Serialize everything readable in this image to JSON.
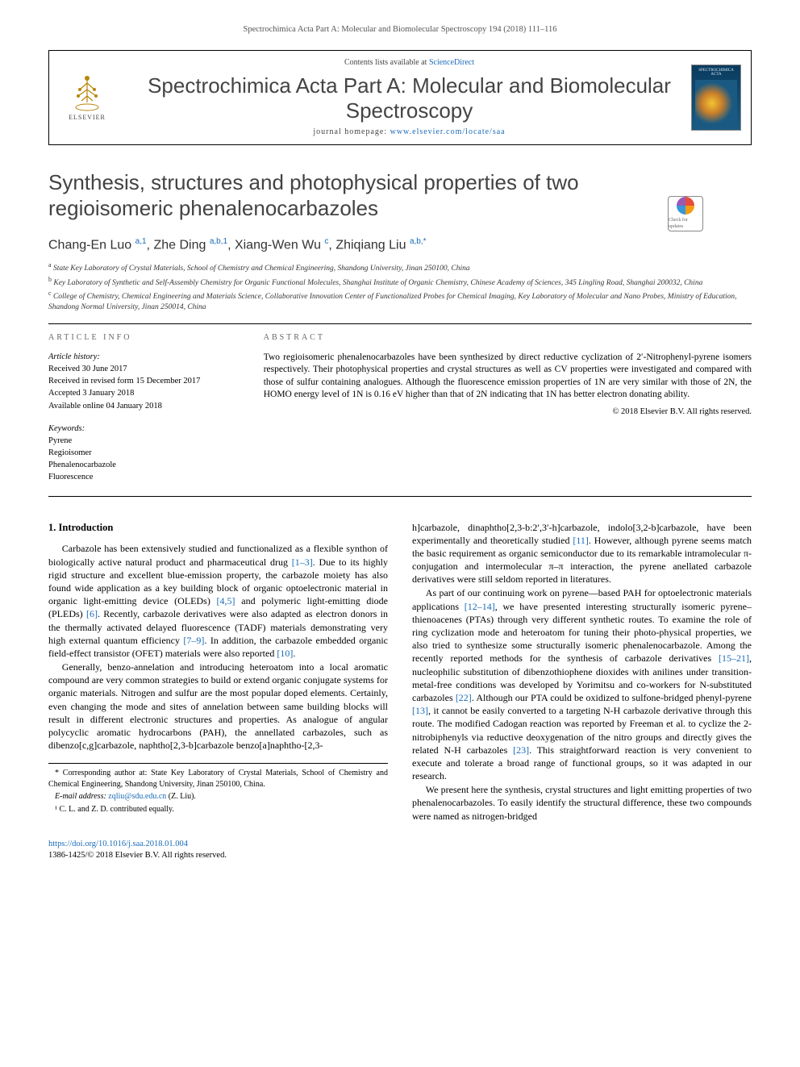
{
  "running_header": "Spectrochimica Acta Part A: Molecular and Biomolecular Spectroscopy 194 (2018) 111–116",
  "banner": {
    "contents_prefix": "Contents lists available at ",
    "contents_link": "ScienceDirect",
    "journal_title": "Spectrochimica Acta Part A: Molecular and Biomolecular Spectroscopy",
    "homepage_prefix": "journal homepage: ",
    "homepage_link": "www.elsevier.com/locate/saa",
    "elsevier_label": "ELSEVIER",
    "cover_label": "SPECTROCHIMICA ACTA"
  },
  "article": {
    "title": "Synthesis, structures and photophysical properties of two regioisomeric phenalenocarbazoles",
    "crossmark_label": "Check for updates",
    "authors_html": "Chang-En Luo <sup><a>a,1</a></sup>, Zhe Ding <sup><a>a,b,1</a></sup>, Xiang-Wen Wu <sup><a>c</a></sup>, Zhiqiang Liu <sup><a>a,b,</a></sup><sup><a>*</a></sup>",
    "affiliations": [
      {
        "sup": "a",
        "text": "State Key Laboratory of Crystal Materials, School of Chemistry and Chemical Engineering, Shandong University, Jinan 250100, China"
      },
      {
        "sup": "b",
        "text": "Key Laboratory of Synthetic and Self-Assembly Chemistry for Organic Functional Molecules, Shanghai Institute of Organic Chemistry, Chinese Academy of Sciences, 345 Lingling Road, Shanghai 200032, China"
      },
      {
        "sup": "c",
        "text": "College of Chemistry, Chemical Engineering and Materials Science, Collaborative Innovation Center of Functionalized Probes for Chemical Imaging, Key Laboratory of Molecular and Nano Probes, Ministry of Education, Shandong Normal University, Jinan 250014, China"
      }
    ]
  },
  "meta": {
    "info_label": "article info",
    "abstract_label": "abstract",
    "history_head": "Article history:",
    "history": [
      "Received 30 June 2017",
      "Received in revised form 15 December 2017",
      "Accepted 3 January 2018",
      "Available online 04 January 2018"
    ],
    "keywords_head": "Keywords:",
    "keywords": [
      "Pyrene",
      "Regioisomer",
      "Phenalenocarbazole",
      "Fluorescence"
    ],
    "abstract": "Two regioisomeric phenalenocarbazoles have been synthesized by direct reductive cyclization of 2′-Nitrophenyl-pyrene isomers respectively. Their photophysical properties and crystal structures as well as CV properties were investigated and compared with those of sulfur containing analogues. Although the fluorescence emission properties of 1N are very similar with those of 2N, the HOMO energy level of 1N is 0.16 eV higher than that of 2N indicating that 1N has better electron donating ability.",
    "copyright": "© 2018 Elsevier B.V. All rights reserved."
  },
  "body": {
    "intro_heading": "1. Introduction",
    "p1": "Carbazole has been extensively studied and functionalized as a flexible synthon of biologically active natural product and pharmaceutical drug [1–3]. Due to its highly rigid structure and excellent blue-emission property, the carbazole moiety has also found wide application as a key building block of organic optoelectronic material in organic light-emitting device (OLEDs) [4,5] and polymeric light-emitting diode (PLEDs) [6]. Recently, carbazole derivatives were also adapted as electron donors in the thermally activated delayed fluorescence (TADF) materials demonstrating very high external quantum efficiency [7–9]. In addition, the carbazole embedded organic field-effect transistor (OFET) materials were also reported [10].",
    "p2": "Generally, benzo-annelation and introducing heteroatom into a local aromatic compound are very common strategies to build or extend organic conjugate systems for organic materials. Nitrogen and sulfur are the most popular doped elements. Certainly, even changing the mode and sites of annelation between same building blocks will result in different electronic structures and properties. As analogue of angular polycyclic aromatic hydrocarbons (PAH), the annellated carbazoles, such as dibenzo[c,g]carbazole, naphtho[2,3-b]carbazole benzo[a]naphtho-[2,3-",
    "p3": "h]carbazole, dinaphtho[2,3-b:2′,3′-h]carbazole, indolo[3,2-b]carbazole, have been experimentally and theoretically studied [11]. However, although pyrene seems match the basic requirement as organic semiconductor due to its remarkable intramolecular π-conjugation and intermolecular π–π interaction, the pyrene anellated carbazole derivatives were still seldom reported in literatures.",
    "p4": "As part of our continuing work on pyrene—based PAH for optoelectronic materials applications [12–14], we have presented interesting structurally isomeric pyrene–thienoacenes (PTAs) through very different synthetic routes. To examine the role of ring cyclization mode and heteroatom for tuning their photo-physical properties, we also tried to synthesize some structurally isomeric phenalenocarbazole. Among the recently reported methods for the synthesis of carbazole derivatives [15–21], nucleophilic substitution of dibenzothiophene dioxides with anilines under transition-metal-free conditions was developed by Yorimitsu and co-workers for N-substituted carbazoles [22]. Although our PTA could be oxidized to sulfone-bridged phenyl-pyrene [13], it cannot be easily converted to a targeting N-H carbazole derivative through this route. The modified Cadogan reaction was reported by Freeman et al. to cyclize the 2-nitrobiphenyls via reductive deoxygenation of the nitro groups and directly gives the related N-H carbazoles [23]. This straightforward reaction is very convenient to execute and tolerate a broad range of functional groups, so it was adapted in our research.",
    "p5": "We present here the synthesis, crystal structures and light emitting properties of two phenalenocarbazoles. To easily identify the structural difference, these two compounds were named as nitrogen-bridged"
  },
  "footnotes": {
    "corr": "* Corresponding author at: State Key Laboratory of Crystal Materials, School of Chemistry and Chemical Engineering, Shandong University, Jinan 250100, China.",
    "email_label": "E-mail address: ",
    "email": "zqliu@sdu.edu.cn",
    "email_person": " (Z. Liu).",
    "equal": "¹ C. L. and Z. D. contributed equally."
  },
  "footer": {
    "doi": "https://doi.org/10.1016/j.saa.2018.01.004",
    "issn_copyright": "1386-1425/© 2018 Elsevier B.V. All rights reserved."
  },
  "colors": {
    "link": "#1a6bb8",
    "text": "#000000",
    "heading_gray": "#434343"
  }
}
